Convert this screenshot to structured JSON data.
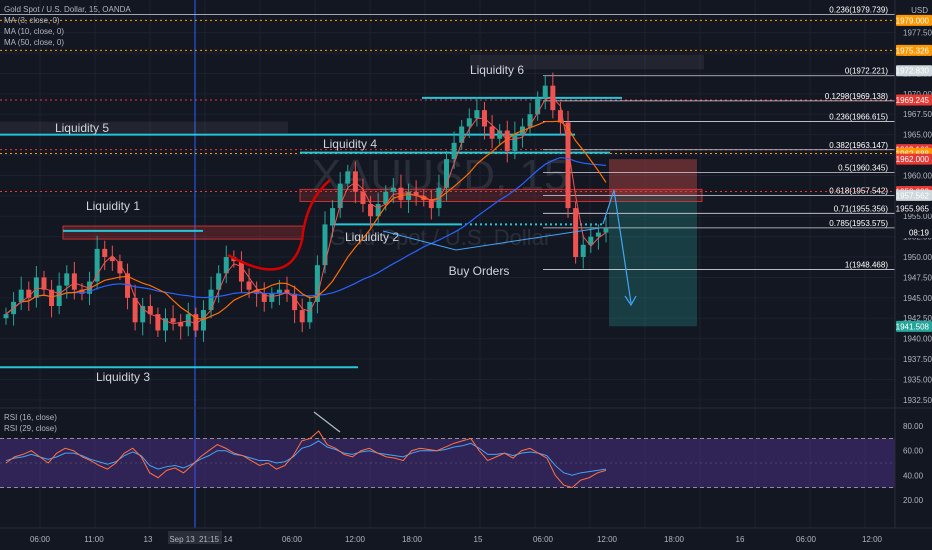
{
  "legend": {
    "title": "Gold Spot / U.S. Dollar, 15, OANDA",
    "ma3": "MA (3, close, 0)",
    "ma10": "MA (10, close, 0)",
    "ma50": "MA (50, close, 0)",
    "rsi16": "RSI (16, close)",
    "rsi29": "RSI (29, close)",
    "currency": "USD"
  },
  "watermark": {
    "symbol": "XAUUSD, 15",
    "name": "Gold Spot / U.S. Dollar"
  },
  "colors": {
    "background": "#131722",
    "liquidity": "#26c6da",
    "fib": "#ffffff",
    "red_level": "#e53935",
    "orange_level": "#ff9800",
    "candle_up": "#26a69a",
    "candle_down": "#ef5350",
    "ma3": "#ef5350",
    "ma10": "#ff6d00",
    "ma50": "#2962ff",
    "rsi_panel": "#311b92",
    "rsi16": "#ff7043",
    "rsi29": "#42a5f5"
  },
  "chart_data": {
    "type": "candlestick",
    "ylim": [
      1931.5,
      1981.5
    ],
    "rsi_ylim": [
      15,
      85
    ],
    "x_ticks": [
      "06:00",
      "11:00",
      "13",
      "Sep 13",
      "21:15",
      "14",
      "06:00",
      "12:00",
      "18:00",
      "15",
      "06:00",
      "12:00",
      "18:00",
      "16",
      "06:00",
      "12:00"
    ],
    "price_ticks": [
      "1977.500",
      "1975.000",
      "1972.500",
      "1970.000",
      "1967.500",
      "1965.000",
      "1962.500",
      "1960.000",
      "1957.500",
      "1955.000",
      "1952.500",
      "1950.000",
      "1947.500",
      "1945.000",
      "1942.500",
      "1940.000",
      "1937.500",
      "1935.000",
      "1932.500"
    ],
    "rsi_ticks": [
      "80.00",
      "60.00",
      "40.00",
      "20.00"
    ],
    "fib_levels": [
      {
        "label": "0.236(1979.739)",
        "value": 1979.739
      },
      {
        "label": "0(1972.221)",
        "value": 1972.221
      },
      {
        "label": "0.1298(1969.138)",
        "value": 1969.138
      },
      {
        "label": "0.236(1966.615)",
        "value": 1966.615
      },
      {
        "label": "0.382(1963.147)",
        "value": 1963.147
      },
      {
        "label": "0.5(1960.345)",
        "value": 1960.345
      },
      {
        "label": "0.618(1957.542)",
        "value": 1957.542
      },
      {
        "label": "0.71(1955.356)",
        "value": 1955.356
      },
      {
        "label": "0.785(1953.575)",
        "value": 1953.575
      },
      {
        "label": "1(1948.468)",
        "value": 1948.468
      }
    ],
    "price_tags": [
      {
        "label": "1979.000",
        "value": 1979.0,
        "color": "#ff9800"
      },
      {
        "label": "1975.326",
        "value": 1975.326,
        "color": "#ff9800"
      },
      {
        "label": "1972.830",
        "value": 1972.83,
        "color": "#cfd8dc"
      },
      {
        "label": "1969.245",
        "value": 1969.245,
        "color": "#e53935"
      },
      {
        "label": "1963.166",
        "value": 1963.166,
        "color": "#e53935"
      },
      {
        "label": "1962.688",
        "value": 1962.688,
        "color": "#ff9800"
      },
      {
        "label": "1962.000",
        "value": 1962.0,
        "color": "#e53935"
      },
      {
        "label": "1958.033",
        "value": 1958.033,
        "color": "#e53935"
      },
      {
        "label": "1957.562",
        "value": 1957.562,
        "color": "#cfd8dc"
      },
      {
        "label": "1955.965",
        "value": 1955.965,
        "color": "#131722"
      },
      {
        "label": "08:19",
        "value": 1953.0,
        "color": "#131722"
      },
      {
        "label": "1941.508",
        "value": 1941.508,
        "color": "#26a69a"
      }
    ],
    "liquidity": [
      {
        "label": "Liquidity 1",
        "value": 1953.2
      },
      {
        "label": "Liquidity 2",
        "value": 1954.0
      },
      {
        "label": "Liquidity 3",
        "value": 1936.5
      },
      {
        "label": "Liquidity 4",
        "value": 1962.8
      },
      {
        "label": "Liquidity 5",
        "value": 1965.0
      },
      {
        "label": "Liquidity 6",
        "value": 1969.5
      }
    ],
    "annotation": "Buy Orders",
    "close": [
      1943.0,
      1944.5,
      1946.0,
      1945.0,
      1947.5,
      1946.0,
      1944.0,
      1946.5,
      1948.0,
      1946.0,
      1945.5,
      1947.0,
      1951.0,
      1950.0,
      1949.5,
      1948.0,
      1945.0,
      1942.0,
      1944.0,
      1943.0,
      1941.0,
      1942.5,
      1942.0,
      1941.5,
      1943.0,
      1941.0,
      1943.5,
      1946.0,
      1948.0,
      1950.0,
      1949.5,
      1947.0,
      1946.0,
      1945.5,
      1944.5,
      1945.5,
      1946.0,
      1945.5,
      1943.5,
      1942.0,
      1944.5,
      1949.0,
      1954.0,
      1956.0,
      1959.0,
      1960.5,
      1958.0,
      1956.5,
      1955.0,
      1956.5,
      1958.0,
      1958.5,
      1957.0,
      1958.0,
      1957.5,
      1957.0,
      1956.0,
      1958.5,
      1962.0,
      1964.0,
      1966.0,
      1967.0,
      1968.0,
      1966.0,
      1964.5,
      1965.5,
      1963.0,
      1965.0,
      1966.0,
      1967.5,
      1969.5,
      1971.0,
      1968.0,
      1966.5,
      1956.0,
      1950.0,
      1951.5,
      1952.5,
      1953.0,
      1953.5
    ],
    "rsi16": [
      50,
      55,
      57,
      60,
      55,
      50,
      58,
      62,
      60,
      55,
      52,
      48,
      45,
      50,
      58,
      62,
      55,
      42,
      38,
      44,
      46,
      42,
      48,
      55,
      60,
      65,
      62,
      58,
      56,
      52,
      48,
      50,
      45,
      48,
      56,
      68,
      70,
      76,
      65,
      62,
      57,
      55,
      60,
      62,
      58,
      55,
      54,
      52,
      60,
      62,
      61,
      60,
      63,
      66,
      68,
      70,
      60,
      52,
      55,
      58,
      54,
      60,
      62,
      58,
      54,
      40,
      32,
      30,
      36,
      38,
      42,
      44
    ],
    "rsi29": [
      52,
      54,
      55,
      57,
      55,
      53,
      55,
      58,
      58,
      56,
      53,
      51,
      49,
      51,
      56,
      59,
      56,
      48,
      45,
      47,
      48,
      46,
      49,
      53,
      56,
      60,
      60,
      57,
      56,
      54,
      52,
      52,
      50,
      51,
      55,
      62,
      64,
      68,
      63,
      61,
      58,
      57,
      59,
      60,
      58,
      57,
      56,
      55,
      58,
      60,
      60,
      60,
      61,
      63,
      64,
      66,
      62,
      57,
      57,
      58,
      56,
      58,
      59,
      58,
      56,
      48,
      42,
      40,
      42,
      43,
      44,
      45
    ]
  },
  "zones": {
    "short_entry": "1957.562",
    "short_stop": "1962.000",
    "short_target": "1941.508"
  }
}
